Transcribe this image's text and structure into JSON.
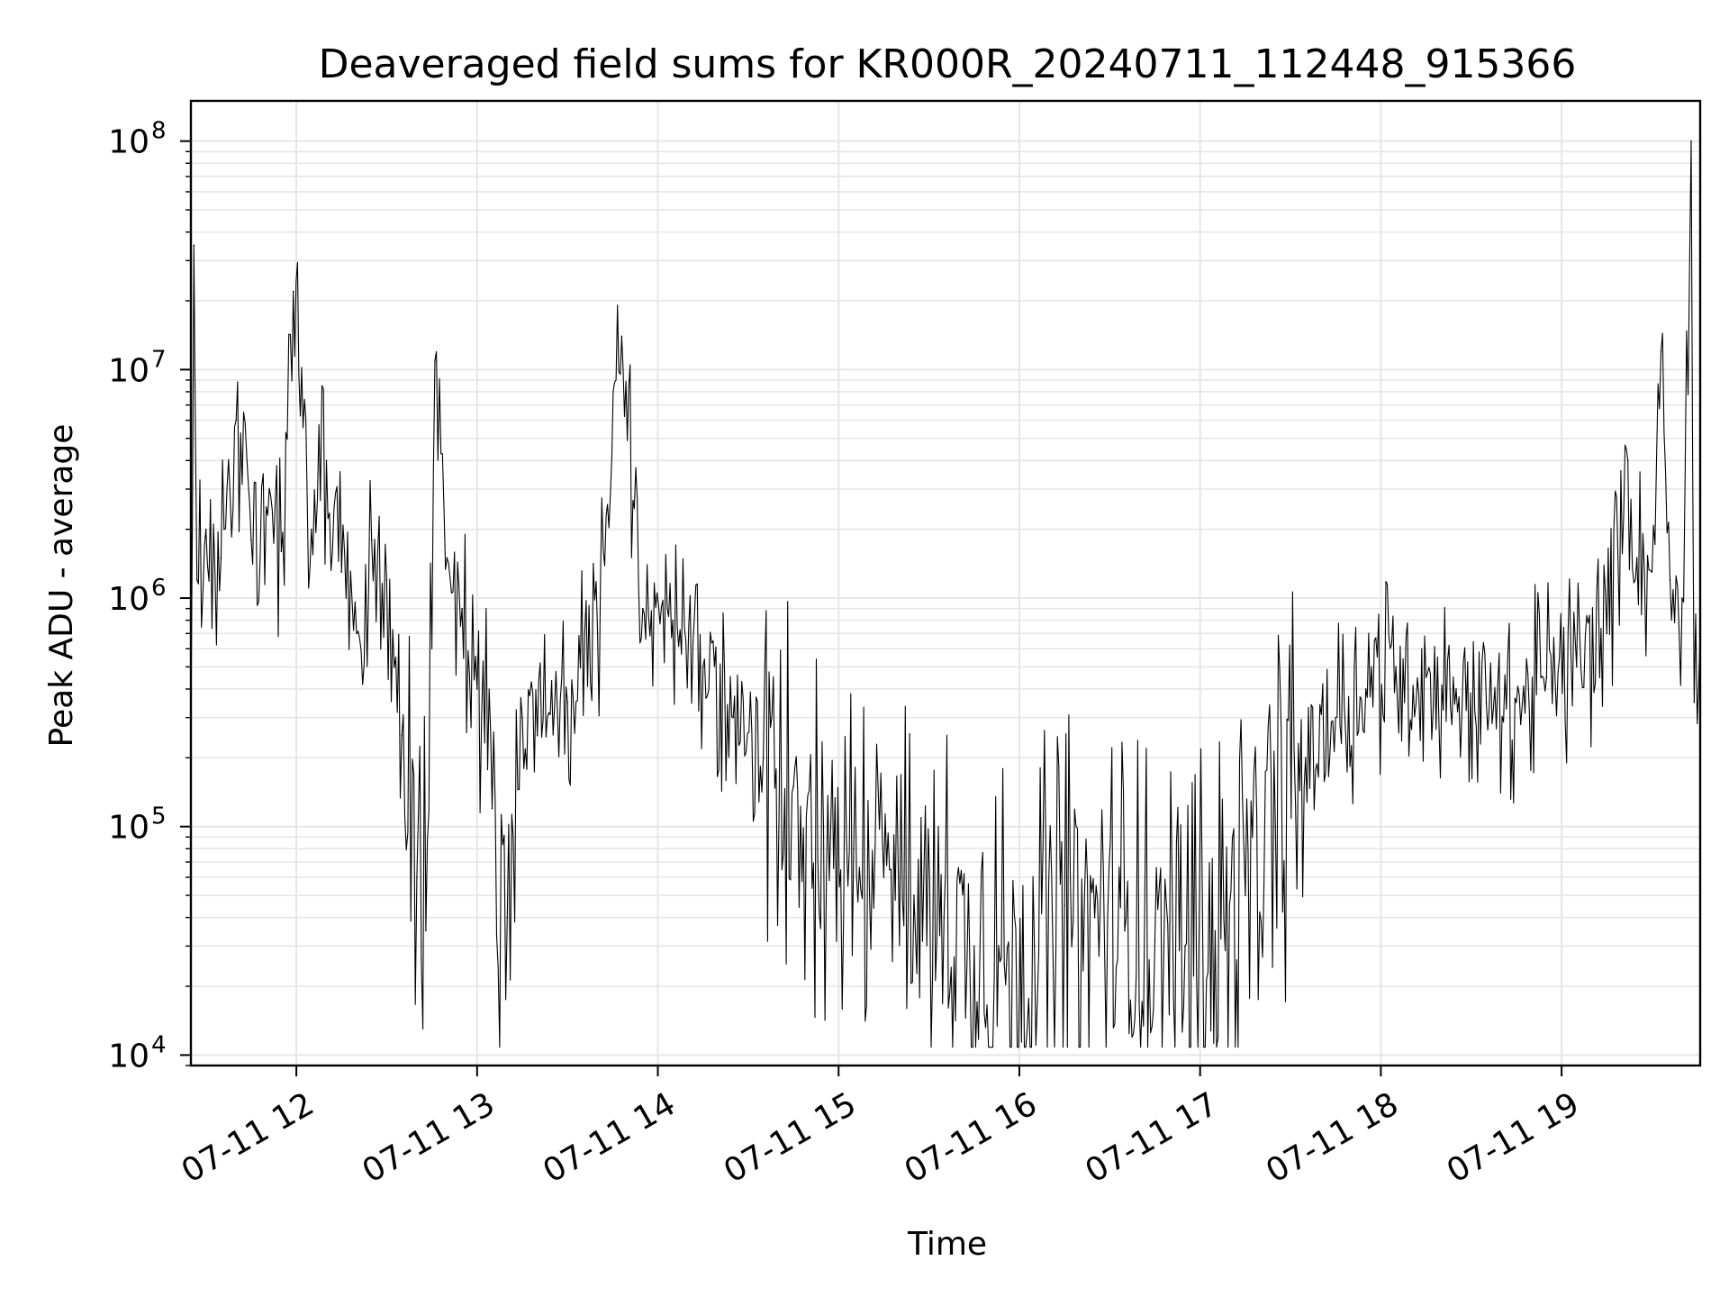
{
  "chart_data": {
    "type": "line",
    "title": "Deaveraged field sums for KR000R_20240711_112448_915366",
    "xlabel": "Time",
    "ylabel": "Peak ADU - average",
    "y_scale": "log",
    "ylim": [
      9000,
      150000000
    ],
    "xlim": [
      "2024-07-11 11:25",
      "2024-07-11 19:46"
    ],
    "grid": true,
    "line_color": "#000000",
    "grid_color": "#e6e6e6",
    "x_ticks": [
      {
        "t": "2024-07-11 12:00",
        "label": "07-11 12"
      },
      {
        "t": "2024-07-11 13:00",
        "label": "07-11 13"
      },
      {
        "t": "2024-07-11 14:00",
        "label": "07-11 14"
      },
      {
        "t": "2024-07-11 15:00",
        "label": "07-11 15"
      },
      {
        "t": "2024-07-11 16:00",
        "label": "07-11 16"
      },
      {
        "t": "2024-07-11 17:00",
        "label": "07-11 17"
      },
      {
        "t": "2024-07-11 18:00",
        "label": "07-11 18"
      },
      {
        "t": "2024-07-11 19:00",
        "label": "07-11 19"
      }
    ],
    "y_ticks": [
      {
        "value": 10000,
        "base": "10",
        "exp": "4"
      },
      {
        "value": 100000,
        "base": "10",
        "exp": "5"
      },
      {
        "value": 1000000,
        "base": "10",
        "exp": "6"
      },
      {
        "value": 10000000,
        "base": "10",
        "exp": "7"
      },
      {
        "value": 100000000,
        "base": "10",
        "exp": "8"
      }
    ],
    "series": [
      {
        "points": [
          [
            "2024-07-11 11:25",
            300000
          ],
          [
            "2024-07-11 11:26",
            35000000
          ],
          [
            "2024-07-11 11:27",
            1200000
          ],
          [
            "2024-07-11 11:30",
            2000000
          ],
          [
            "2024-07-11 11:35",
            1500000
          ],
          [
            "2024-07-11 11:40",
            6000000
          ],
          [
            "2024-07-11 11:45",
            1800000
          ],
          [
            "2024-07-11 11:50",
            2500000
          ],
          [
            "2024-07-11 11:55",
            1600000
          ],
          [
            "2024-07-11 11:59",
            22000000
          ],
          [
            "2024-07-11 12:05",
            2000000
          ],
          [
            "2024-07-11 12:10",
            4000000
          ],
          [
            "2024-07-11 12:15",
            1300000
          ],
          [
            "2024-07-11 12:20",
            700000
          ],
          [
            "2024-07-11 12:25",
            1800000
          ],
          [
            "2024-07-11 12:30",
            1200000
          ],
          [
            "2024-07-11 12:35",
            250000
          ],
          [
            "2024-07-11 12:40",
            60000
          ],
          [
            "2024-07-11 12:43",
            35000
          ],
          [
            "2024-07-11 12:46",
            11000000
          ],
          [
            "2024-07-11 12:50",
            1500000
          ],
          [
            "2024-07-11 12:55",
            900000
          ],
          [
            "2024-07-11 13:00",
            400000
          ],
          [
            "2024-07-11 13:05",
            120000
          ],
          [
            "2024-07-11 13:10",
            40000
          ],
          [
            "2024-07-11 13:15",
            300000
          ],
          [
            "2024-07-11 13:20",
            250000
          ],
          [
            "2024-07-11 13:30",
            350000
          ],
          [
            "2024-07-11 13:40",
            700000
          ],
          [
            "2024-07-11 13:48",
            14000000
          ],
          [
            "2024-07-11 13:55",
            900000
          ],
          [
            "2024-07-11 14:05",
            800000
          ],
          [
            "2024-07-11 14:15",
            500000
          ],
          [
            "2024-07-11 14:25",
            300000
          ],
          [
            "2024-07-11 14:35",
            200000
          ],
          [
            "2024-07-11 14:45",
            150000
          ],
          [
            "2024-07-11 14:55",
            100000
          ],
          [
            "2024-07-11 15:05",
            80000
          ],
          [
            "2024-07-11 15:15",
            60000
          ],
          [
            "2024-07-11 15:25",
            50000
          ],
          [
            "2024-07-11 15:35",
            40000
          ],
          [
            "2024-07-11 15:45",
            30000
          ],
          [
            "2024-07-11 15:55",
            25000
          ],
          [
            "2024-07-11 16:05",
            30000
          ],
          [
            "2024-07-11 16:15",
            45000
          ],
          [
            "2024-07-11 16:25",
            40000
          ],
          [
            "2024-07-11 16:35",
            35000
          ],
          [
            "2024-07-11 16:45",
            32000
          ],
          [
            "2024-07-11 16:55",
            30000
          ],
          [
            "2024-07-11 17:05",
            35000
          ],
          [
            "2024-07-11 17:15",
            50000
          ],
          [
            "2024-07-11 17:25",
            100000
          ],
          [
            "2024-07-11 17:35",
            200000
          ],
          [
            "2024-07-11 17:45",
            300000
          ],
          [
            "2024-07-11 17:55",
            400000
          ],
          [
            "2024-07-11 18:05",
            500000
          ],
          [
            "2024-07-11 18:15",
            450000
          ],
          [
            "2024-07-11 18:25",
            400000
          ],
          [
            "2024-07-11 18:35",
            350000
          ],
          [
            "2024-07-11 18:45",
            350000
          ],
          [
            "2024-07-11 18:55",
            450000
          ],
          [
            "2024-07-11 19:05",
            500000
          ],
          [
            "2024-07-11 19:15",
            700000
          ],
          [
            "2024-07-11 19:22",
            4000000
          ],
          [
            "2024-07-11 19:25",
            1500000
          ],
          [
            "2024-07-11 19:30",
            1300000
          ],
          [
            "2024-07-11 19:33",
            12000000
          ],
          [
            "2024-07-11 19:36",
            1200000
          ],
          [
            "2024-07-11 19:40",
            1000000
          ],
          [
            "2024-07-11 19:43",
            100000000
          ],
          [
            "2024-07-11 19:44",
            350000
          ],
          [
            "2024-07-11 19:46",
            700000
          ]
        ]
      }
    ]
  }
}
